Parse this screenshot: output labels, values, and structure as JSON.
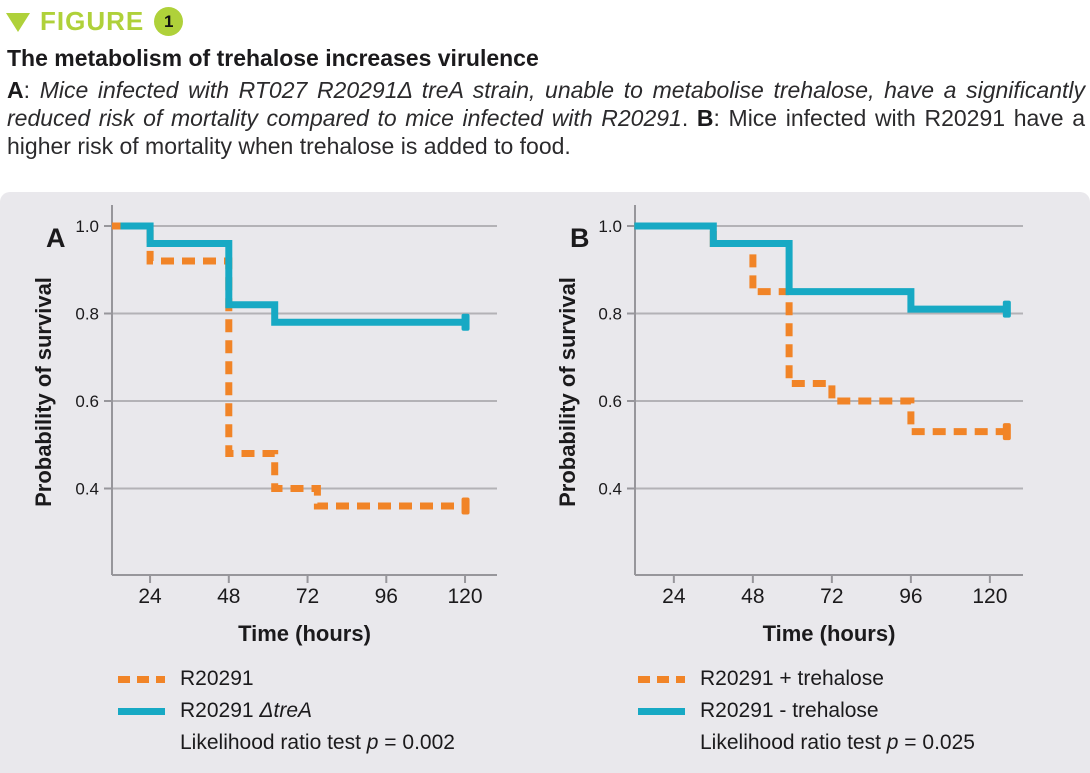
{
  "header": {
    "figure_label": "FIGURE",
    "figure_number": "1"
  },
  "title": "The metabolism of trehalose increases virulence",
  "caption": [
    {
      "text": "A"
    },
    {
      "text": ": "
    },
    {
      "text": "Mice infected with RT027 R20291Δ treA strain, unable to metabolise trehalose, have a si­gnificantly reduced risk of mortality compared to mice infected with R20291"
    },
    {
      "text": ". "
    },
    {
      "text": "B"
    },
    {
      "text": ": Mice infected with R20291 have a higher risk of mortality when trehalose is added to food."
    }
  ],
  "colors": {
    "orange": "#F18427",
    "teal": "#17A9C4",
    "green_accent": "#AFD13A",
    "panel_background": "#E9E8EC",
    "gridline": "#B3B2B6",
    "axis": "#97969B"
  },
  "chart_data": [
    {
      "panel_label": "A",
      "type": "line",
      "style": "kaplan-meier-step",
      "xlabel": "Time (hours)",
      "ylabel": "Probability of survival",
      "xticks": [
        24,
        48,
        72,
        96,
        120
      ],
      "yticks": [
        {
          "label": "1.0",
          "value": 1.0
        },
        {
          "label": "0.8",
          "value": 0.8
        },
        {
          "label": "0.6",
          "value": 0.6
        },
        {
          "label": "0.4",
          "value": 0.4
        }
      ],
      "xlim": [
        12,
        130
      ],
      "ylim": [
        0.2,
        1.05
      ],
      "grid": "horizontal only",
      "legend_position": "below left",
      "series": [
        {
          "name": "R20291",
          "name_italic": "",
          "color_key": "orange",
          "dashed": true,
          "end_cap": true,
          "points": [
            [
              12.4,
              1.0
            ],
            [
              24,
              1.0
            ],
            [
              24,
              0.92
            ],
            [
              48,
              0.92
            ],
            [
              48,
              0.48
            ],
            [
              62,
              0.48
            ],
            [
              62,
              0.4
            ],
            [
              75,
              0.4
            ],
            [
              75,
              0.36
            ],
            [
              120,
              0.36
            ]
          ]
        },
        {
          "name": "R20291 ",
          "name_italic": "ΔtreA",
          "color_key": "teal",
          "dashed": false,
          "end_cap": true,
          "points": [
            [
              15,
              1.0
            ],
            [
              24,
              1.0
            ],
            [
              24,
              0.96
            ],
            [
              48,
              0.96
            ],
            [
              48,
              0.82
            ],
            [
              62,
              0.82
            ],
            [
              62,
              0.78
            ],
            [
              120,
              0.78
            ]
          ]
        }
      ],
      "stats": {
        "prefix": "Likelihood ratio test ",
        "p_symbol": "p",
        "rest": " = 0.002"
      }
    },
    {
      "panel_label": "B",
      "type": "line",
      "style": "kaplan-meier-step",
      "xlabel": "Time (hours)",
      "ylabel": "Probability of survival",
      "xticks": [
        24,
        48,
        72,
        96,
        120
      ],
      "yticks": [
        {
          "label": "1.0",
          "value": 1.0
        },
        {
          "label": "0.8",
          "value": 0.8
        },
        {
          "label": "0.6",
          "value": 0.6
        },
        {
          "label": "0.4",
          "value": 0.4
        }
      ],
      "xlim": [
        12,
        130
      ],
      "ylim": [
        0.2,
        1.05
      ],
      "grid": "horizontal only",
      "legend_position": "below left",
      "series": [
        {
          "name": "R20291 + trehalose",
          "name_italic": "",
          "color_key": "orange",
          "dashed": true,
          "end_cap": true,
          "points": [
            [
              12,
              1.0
            ],
            [
              36,
              1.0
            ],
            [
              36,
              0.96
            ],
            [
              48,
              0.96
            ],
            [
              48,
              0.85
            ],
            [
              59,
              0.85
            ],
            [
              59,
              0.64
            ],
            [
              72,
              0.64
            ],
            [
              72,
              0.6
            ],
            [
              96,
              0.6
            ],
            [
              96,
              0.53
            ],
            [
              125,
              0.53
            ]
          ]
        },
        {
          "name": "R20291 - trehalose",
          "name_italic": "",
          "color_key": "teal",
          "dashed": false,
          "end_cap": true,
          "points": [
            [
              12,
              1.0
            ],
            [
              36,
              1.0
            ],
            [
              36,
              0.96
            ],
            [
              59,
              0.96
            ],
            [
              59,
              0.85
            ],
            [
              96,
              0.85
            ],
            [
              96,
              0.81
            ],
            [
              125,
              0.81
            ]
          ]
        }
      ],
      "stats": {
        "prefix": "Likelihood ratio test ",
        "p_symbol": "p",
        "rest": " = 0.025"
      }
    }
  ]
}
